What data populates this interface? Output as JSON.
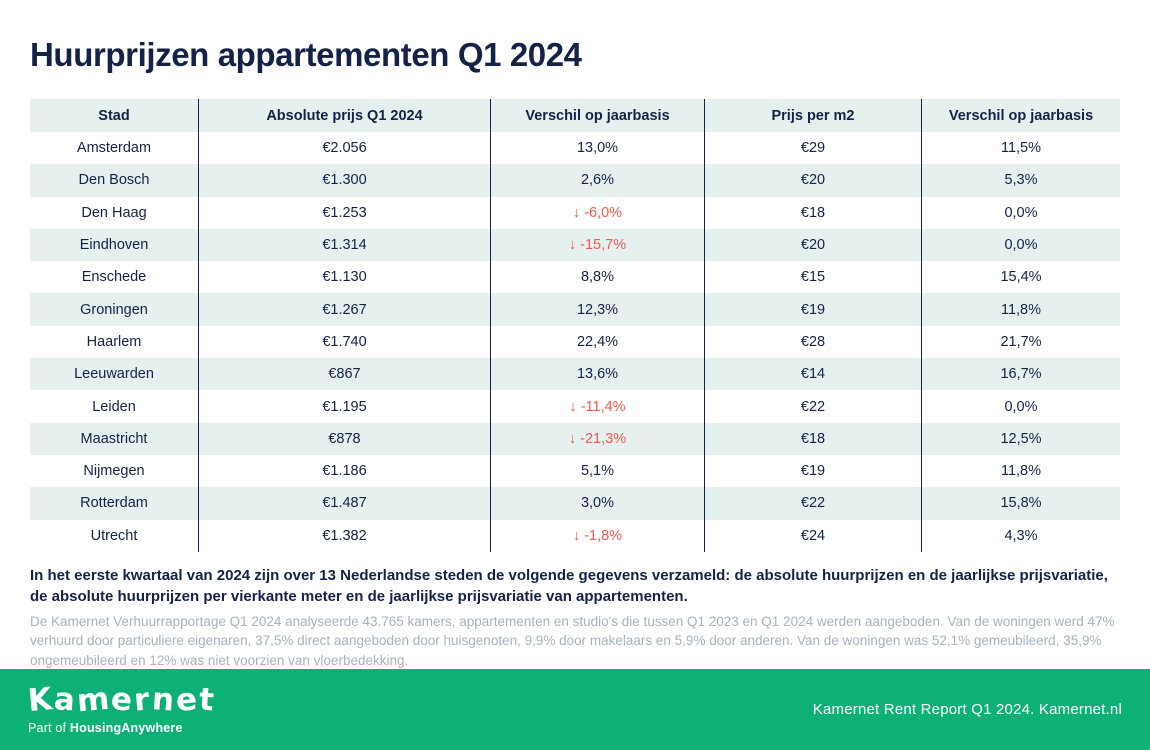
{
  "title": "Huurprijzen appartementen Q1 2024",
  "colors": {
    "navy": "#152248",
    "mint": "#e6f0ee",
    "green": "#0db176",
    "red": "#ef5a51",
    "gray_text": "#a7b2bc",
    "white": "#ffffff"
  },
  "icons": {
    "down_arrow": "↓"
  },
  "table": {
    "headers": [
      "Stad",
      "Absolute prijs Q1 2024",
      "Verschil op jaarbasis",
      "Prijs per m2",
      "Verschil op jaarbasis"
    ],
    "rows": [
      {
        "stad": "Amsterdam",
        "absolute_prijs": "€2.056",
        "verschil_jaar": "13,0%",
        "verschil_jaar_negatief": false,
        "prijs_m2": "€29",
        "verschil_m2_jaar": "11,5%"
      },
      {
        "stad": "Den Bosch",
        "absolute_prijs": "€1.300",
        "verschil_jaar": "2,6%",
        "verschil_jaar_negatief": false,
        "prijs_m2": "€20",
        "verschil_m2_jaar": "5,3%"
      },
      {
        "stad": "Den Haag",
        "absolute_prijs": "€1.253",
        "verschil_jaar": "-6,0%",
        "verschil_jaar_negatief": true,
        "prijs_m2": "€18",
        "verschil_m2_jaar": "0,0%"
      },
      {
        "stad": "Eindhoven",
        "absolute_prijs": "€1.314",
        "verschil_jaar": "-15,7%",
        "verschil_jaar_negatief": true,
        "prijs_m2": "€20",
        "verschil_m2_jaar": "0,0%"
      },
      {
        "stad": "Enschede",
        "absolute_prijs": "€1.130",
        "verschil_jaar": "8,8%",
        "verschil_jaar_negatief": false,
        "prijs_m2": "€15",
        "verschil_m2_jaar": "15,4%"
      },
      {
        "stad": "Groningen",
        "absolute_prijs": "€1.267",
        "verschil_jaar": "12,3%",
        "verschil_jaar_negatief": false,
        "prijs_m2": "€19",
        "verschil_m2_jaar": "11,8%"
      },
      {
        "stad": "Haarlem",
        "absolute_prijs": "€1.740",
        "verschil_jaar": "22,4%",
        "verschil_jaar_negatief": false,
        "prijs_m2": "€28",
        "verschil_m2_jaar": "21,7%"
      },
      {
        "stad": "Leeuwarden",
        "absolute_prijs": "€867",
        "verschil_jaar": "13,6%",
        "verschil_jaar_negatief": false,
        "prijs_m2": "€14",
        "verschil_m2_jaar": "16,7%"
      },
      {
        "stad": "Leiden",
        "absolute_prijs": "€1.195",
        "verschil_jaar": "-11,4%",
        "verschil_jaar_negatief": true,
        "prijs_m2": "€22",
        "verschil_m2_jaar": "0,0%"
      },
      {
        "stad": "Maastricht",
        "absolute_prijs": "€878",
        "verschil_jaar": "-21,3%",
        "verschil_jaar_negatief": true,
        "prijs_m2": "€18",
        "verschil_m2_jaar": "12,5%"
      },
      {
        "stad": "Nijmegen",
        "absolute_prijs": "€1.186",
        "verschil_jaar": "5,1%",
        "verschil_jaar_negatief": false,
        "prijs_m2": "€19",
        "verschil_m2_jaar": "11,8%"
      },
      {
        "stad": "Rotterdam",
        "absolute_prijs": "€1.487",
        "verschil_jaar": "3,0%",
        "verschil_jaar_negatief": false,
        "prijs_m2": "€22",
        "verschil_m2_jaar": "15,8%"
      },
      {
        "stad": "Utrecht",
        "absolute_prijs": "€1.382",
        "verschil_jaar": "-1,8%",
        "verschil_jaar_negatief": true,
        "prijs_m2": "€24",
        "verschil_m2_jaar": "4,3%"
      }
    ]
  },
  "summary": {
    "bold_text": "In het eerste kwartaal van 2024 zijn over 13 Nederlandse steden de volgende gegevens verzameld: de absolute huurprijzen en de jaarlijkse prijsvariatie, de absolute huurprijzen per vierkante meter en de jaarlijkse prijsvariatie van appartementen.",
    "body_text": "De Kamernet Verhuurrapportage Q1 2024 analyseerde 43.765 kamers, appartementen en studio's die tussen Q1 2023 en Q1 2024 werden aangeboden. Van de woningen werd 47% verhuurd door particuliere eigenaren, 37,5% direct aangeboden door huisgenoten, 9,9% door makelaars en 5,9% door anderen. Van de woningen was 52,1% gemeubileerd, 35,9% ongemeubileerd en 12% was niet voorzien van vloerbedekking."
  },
  "footer": {
    "logo": "Kamernet",
    "tagline_prefix": "Part of ",
    "tagline_brand": "HousingAnywhere",
    "report_label": "Kamernet Rent Report Q1 2024. Kamernet.nl"
  }
}
